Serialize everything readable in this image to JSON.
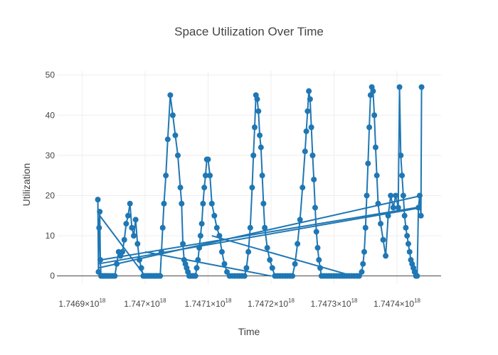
{
  "chart_data": {
    "type": "line",
    "title": "Space Utilization Over Time",
    "xlabel": "Time",
    "ylabel": "Utilization",
    "x_tick_labels": [
      {
        "mantissa": "1.7469",
        "exponent": "18",
        "value": 1.7469e+18
      },
      {
        "mantissa": "1.747",
        "exponent": "18",
        "value": 1.747e+18
      },
      {
        "mantissa": "1.7471",
        "exponent": "18",
        "value": 1.7471e+18
      },
      {
        "mantissa": "1.7472",
        "exponent": "18",
        "value": 1.7472e+18
      },
      {
        "mantissa": "1.7473",
        "exponent": "18",
        "value": 1.7473e+18
      },
      {
        "mantissa": "1.7474",
        "exponent": "18",
        "value": 1.7474e+18
      }
    ],
    "y_ticks": [
      0,
      10,
      20,
      30,
      40,
      50
    ],
    "xlim": [
      1.74686e+18,
      1.74747e+18
    ],
    "ylim": [
      -2,
      51
    ],
    "grid": true,
    "legend": "none",
    "line_color": "#1f77b4",
    "x_times_label": "×10",
    "series": [
      {
        "x": [
          1.746925e+18,
          1.746926e+18,
          1.746927e+18,
          1.746928e+18,
          1.746929e+18,
          1.74693e+18,
          1.746932e+18,
          1.746934e+18,
          1.746936e+18,
          1.746938e+18,
          1.74694e+18,
          1.746943e+18,
          1.746946e+18,
          1.746949e+18,
          1.746952e+18,
          1.746955e+18,
          1.746958e+18,
          1.746961e+18,
          1.746964e+18,
          1.746967e+18,
          1.74697e+18,
          1.746973e+18,
          1.746976e+18,
          1.746979e+18,
          1.746982e+18,
          1.746985e+18,
          1.746988e+18,
          1.746991e+18,
          1.746994e+18,
          1.746997e+18,
          1.747e+18,
          1.747002e+18,
          1.747004e+18,
          1.747006e+18,
          1.747008e+18,
          1.74701e+18,
          1.747012e+18,
          1.747014e+18,
          1.747016e+18,
          1.747018e+18,
          1.74702e+18,
          1.747022e+18,
          1.747024e+18,
          1.747026e+18,
          1.747028e+18,
          1.74703e+18,
          1.747033e+18,
          1.747036e+18,
          1.74704e+18,
          1.747044e+18,
          1.747048e+18,
          1.747052e+18,
          1.747056e+18,
          1.747058e+18,
          1.74706e+18,
          1.747062e+18,
          1.747064e+18,
          1.747066e+18,
          1.747068e+18,
          1.74707e+18,
          1.747072e+18,
          1.747074e+18,
          1.747076e+18,
          1.747078e+18,
          1.74708e+18,
          1.747082e+18,
          1.747084e+18,
          1.747086e+18,
          1.747088e+18,
          1.74709e+18,
          1.747092e+18,
          1.747094e+18,
          1.747096e+18,
          1.747098e+18,
          1.7471e+18,
          1.747103e+18,
          1.747106e+18,
          1.74711e+18,
          1.747114e+18,
          1.747118e+18,
          1.747122e+18,
          1.747126e+18,
          1.74713e+18,
          1.747134e+18,
          1.747138e+18,
          1.747142e+18,
          1.747146e+18,
          1.74715e+18,
          1.747154e+18,
          1.747158e+18,
          1.747161e+18,
          1.747164e+18,
          1.747167e+18,
          1.74717e+18,
          1.747172e+18,
          1.747174e+18,
          1.747176e+18,
          1.747178e+18,
          1.74718e+18,
          1.747182e+18,
          1.747184e+18,
          1.747186e+18,
          1.747188e+18,
          1.74719e+18,
          1.747194e+18,
          1.747198e+18,
          1.747202e+18,
          1.747206e+18,
          1.74721e+18,
          1.747214e+18,
          1.747218e+18,
          1.747222e+18,
          1.747226e+18,
          1.74723e+18,
          1.747234e+18,
          1.747238e+18,
          1.747242e+18,
          1.747246e+18,
          1.74725e+18,
          1.747254e+18,
          1.747256e+18,
          1.747258e+18,
          1.74726e+18,
          1.747262e+18,
          1.747264e+18,
          1.747266e+18,
          1.747268e+18,
          1.74727e+18,
          1.747272e+18,
          1.747274e+18,
          1.747276e+18,
          1.747278e+18,
          1.74728e+18,
          1.747284e+18,
          1.747288e+18,
          1.747292e+18,
          1.747296e+18,
          1.7473e+18,
          1.747304e+18,
          1.747308e+18,
          1.747312e+18,
          1.747316e+18,
          1.74732e+18,
          1.747324e+18,
          1.747328e+18,
          1.747332e+18,
          1.747336e+18,
          1.74734e+18,
          1.747344e+18,
          1.747346e+18,
          1.747348e+18,
          1.74735e+18,
          1.747352e+18,
          1.747354e+18,
          1.747356e+18,
          1.747358e+18,
          1.74736e+18,
          1.747362e+18,
          1.747364e+18,
          1.747366e+18,
          1.747368e+18,
          1.74737e+18,
          1.747374e+18,
          1.747378e+18,
          1.747382e+18,
          1.747386e+18,
          1.74739e+18,
          1.747394e+18,
          1.747398e+18,
          1.747402e+18,
          1.747404e+18,
          1.747406e+18,
          1.747408e+18,
          1.74741e+18,
          1.747412e+18,
          1.747414e+18,
          1.747416e+18,
          1.747418e+18,
          1.74742e+18,
          1.747422e+18,
          1.747424e+18,
          1.747426e+18,
          1.747428e+18,
          1.74743e+18,
          1.747432e+18,
          1.747434e+18,
          1.747436e+18,
          1.747438e+18,
          1.747439e+18
        ],
        "y": [
          19,
          1,
          12,
          16,
          4,
          0,
          0,
          0,
          0,
          0,
          0,
          0,
          0,
          0,
          0,
          3,
          6,
          5,
          6,
          9,
          13,
          15,
          18,
          12,
          10,
          14,
          8,
          4,
          2,
          0,
          0,
          0,
          0,
          0,
          0,
          0,
          0,
          0,
          0,
          0,
          0,
          0,
          0,
          6,
          12,
          18,
          25,
          34,
          45,
          40,
          35,
          30,
          22,
          18,
          8,
          4,
          3,
          2,
          1,
          0,
          0,
          0,
          0,
          0,
          0,
          2,
          4,
          7,
          10,
          13,
          18,
          22,
          25,
          29,
          29,
          25,
          18,
          15,
          12,
          10,
          6,
          3,
          1,
          0,
          0,
          0,
          0,
          0,
          0,
          0,
          2,
          6,
          12,
          22,
          30,
          37,
          45,
          44,
          41,
          35,
          32,
          25,
          18,
          12,
          7,
          4,
          2,
          0,
          0,
          0,
          0,
          0,
          0,
          0,
          0,
          3,
          8,
          14,
          22,
          31,
          36,
          41,
          46,
          44,
          37,
          30,
          24,
          17,
          11,
          7,
          4,
          2,
          0,
          0,
          0,
          0,
          0,
          0,
          0,
          0,
          0,
          0,
          0,
          0,
          0,
          0,
          0,
          0,
          1,
          3,
          6,
          12,
          20,
          28,
          37,
          45,
          47,
          46,
          40,
          32,
          25,
          18,
          13,
          9,
          5,
          15,
          20,
          17,
          20,
          17,
          47,
          30,
          25,
          20,
          15,
          12,
          10,
          8,
          6,
          4,
          3,
          2,
          1,
          0,
          0,
          17,
          20,
          15,
          47
        ]
      }
    ],
    "wrap_segments": [
      {
        "x": [
          1.747439e+18,
          1.746925e+18
        ],
        "y": [
          17,
          3
        ]
      },
      {
        "x": [
          1.746926e+18,
          1.747439e+18
        ],
        "y": [
          2,
          20
        ]
      },
      {
        "x": [
          1.74693e+18,
          1.74743e+18
        ],
        "y": [
          4,
          17
        ]
      },
      {
        "x": [
          1.746928e+18,
          1.747e+18
        ],
        "y": [
          15,
          0
        ]
      },
      {
        "x": [
          1.747106e+18,
          1.74733e+18
        ],
        "y": [
          10,
          0
        ]
      },
      {
        "x": [
          1.747e+18,
          1.7472e+18
        ],
        "y": [
          6,
          0
        ]
      }
    ]
  }
}
